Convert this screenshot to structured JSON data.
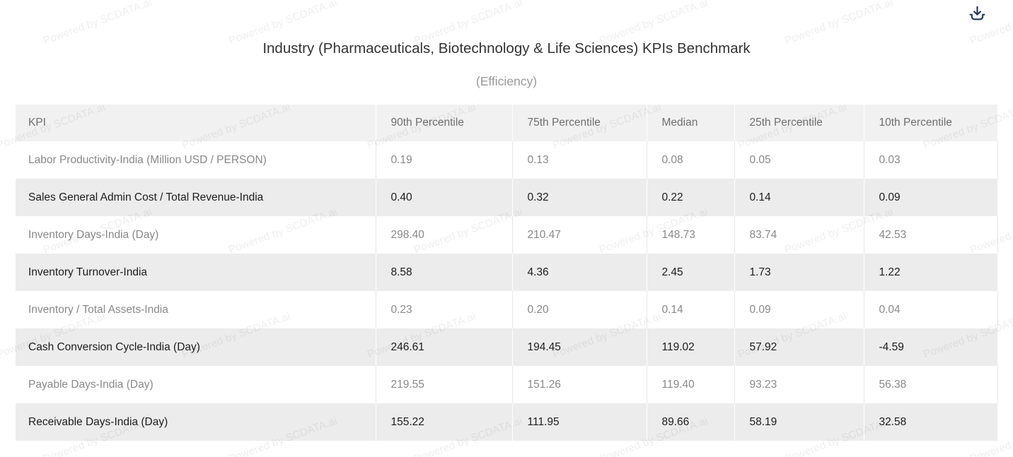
{
  "page": {
    "watermark": "Powered by SCDATA.ai"
  },
  "toolbar": {
    "download_icon": "download-icon"
  },
  "colors": {
    "icon_navy": "#253758",
    "header_bg": "#f1f1f1",
    "stripe_row_bg": "#ececec",
    "plain_row_bg": "#ffffff",
    "header_text": "#6f6f6f",
    "plain_row_text": "#898989",
    "stripe_row_text": "#1d1d1d",
    "grid_line": "#e7e7e7",
    "title_text": "#333333",
    "subtitle_text": "#9a9a9a"
  },
  "chart_data": {
    "type": "table",
    "title": "Industry (Pharmaceuticals, Biotechnology & Life Sciences) KPIs Benchmark",
    "subtitle": "(Efficiency)",
    "columns": [
      "KPI",
      "90th Percentile",
      "75th Percentile",
      "Median",
      "25th Percentile",
      "10th Percentile"
    ],
    "rows": [
      {
        "kpi": "Labor Productivity-India (Million USD / PERSON)",
        "values": [
          "0.19",
          "0.13",
          "0.08",
          "0.05",
          "0.03"
        ]
      },
      {
        "kpi": "Sales General Admin Cost / Total Revenue-India",
        "values": [
          "0.40",
          "0.32",
          "0.22",
          "0.14",
          "0.09"
        ]
      },
      {
        "kpi": "Inventory Days-India (Day)",
        "values": [
          "298.40",
          "210.47",
          "148.73",
          "83.74",
          "42.53"
        ]
      },
      {
        "kpi": "Inventory Turnover-India",
        "values": [
          "8.58",
          "4.36",
          "2.45",
          "1.73",
          "1.22"
        ]
      },
      {
        "kpi": "Inventory / Total Assets-India",
        "values": [
          "0.23",
          "0.20",
          "0.14",
          "0.09",
          "0.04"
        ]
      },
      {
        "kpi": "Cash Conversion Cycle-India (Day)",
        "values": [
          "246.61",
          "194.45",
          "119.02",
          "57.92",
          "-4.59"
        ]
      },
      {
        "kpi": "Payable Days-India (Day)",
        "values": [
          "219.55",
          "151.26",
          "119.40",
          "93.23",
          "56.38"
        ]
      },
      {
        "kpi": "Receivable Days-India (Day)",
        "values": [
          "155.22",
          "111.95",
          "89.66",
          "58.19",
          "32.58"
        ]
      }
    ]
  }
}
